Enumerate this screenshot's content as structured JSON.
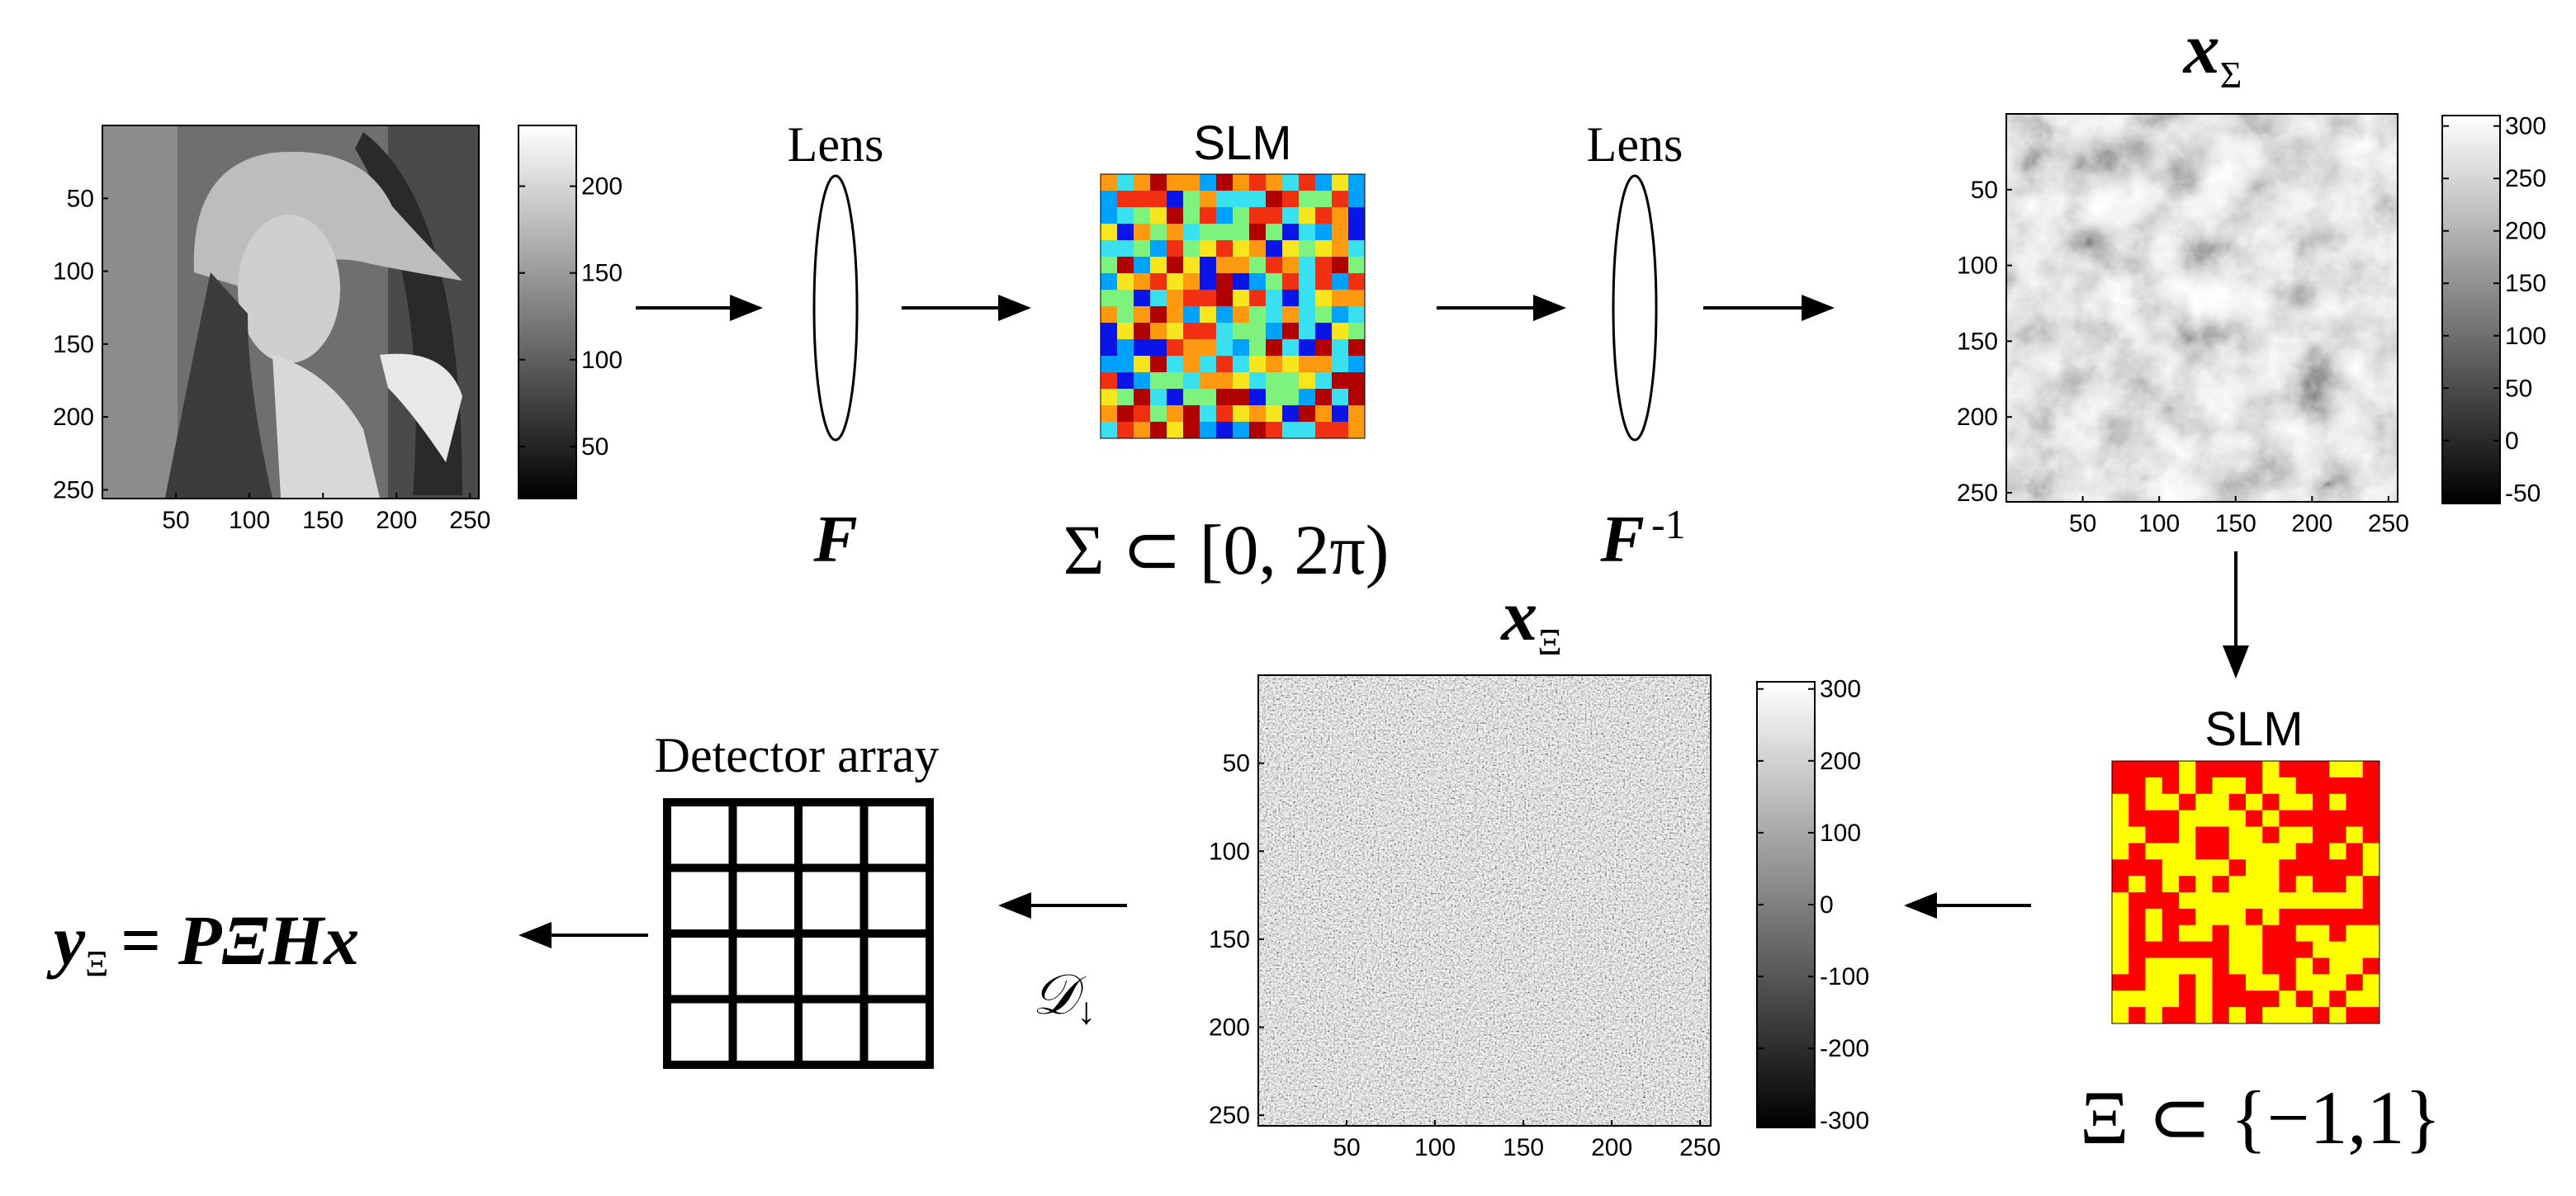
{
  "panels": {
    "input_image": {
      "x_ticks": [
        "50",
        "100",
        "150",
        "200",
        "250"
      ],
      "y_ticks": [
        "50",
        "100",
        "150",
        "200",
        "250"
      ],
      "colorbar_ticks": [
        "200",
        "150",
        "100",
        "50"
      ],
      "colorbar_range": [
        20,
        235
      ]
    },
    "x_sigma": {
      "title_symbol": "x",
      "title_sub": "Σ",
      "x_ticks": [
        "50",
        "100",
        "150",
        "200",
        "250"
      ],
      "y_ticks": [
        "50",
        "100",
        "150",
        "200",
        "250"
      ],
      "colorbar_ticks": [
        "300",
        "250",
        "200",
        "150",
        "100",
        "50",
        "0",
        "-50"
      ],
      "colorbar_range": [
        -60,
        310
      ]
    },
    "x_xi": {
      "title_symbol": "x",
      "title_sub": "Ξ",
      "x_ticks": [
        "50",
        "100",
        "150",
        "200",
        "250"
      ],
      "y_ticks": [
        "50",
        "100",
        "150",
        "200",
        "250"
      ],
      "colorbar_ticks": [
        "300",
        "200",
        "100",
        "0",
        "-100",
        "-200",
        "-300"
      ],
      "colorbar_range": [
        -310,
        310
      ]
    }
  },
  "optics": {
    "lens1": {
      "label": "Lens",
      "symbol": "F"
    },
    "slm1": {
      "label": "SLM",
      "formula": "Σ ⊂ [0, 2π)"
    },
    "lens2": {
      "label": "Lens",
      "symbol": "F",
      "superscript": "-1"
    },
    "slm2": {
      "label": "SLM",
      "formula": "Ξ ⊂ {−1,1}"
    },
    "detector": {
      "label": "Detector array"
    },
    "downsample": {
      "symbol": "𝒟",
      "arrow": "↓"
    },
    "output": {
      "lhs": "y",
      "lhs_sub": "Ξ",
      "rhs": "= PΞHx"
    }
  },
  "colors": {
    "slm1_palette": [
      "#0a14e6",
      "#00a2ff",
      "#38e0f0",
      "#7df27d",
      "#f7e51e",
      "#ff9a10",
      "#f03010",
      "#b00000"
    ],
    "slm2_palette": [
      "#ff0000",
      "#ffff00"
    ]
  }
}
